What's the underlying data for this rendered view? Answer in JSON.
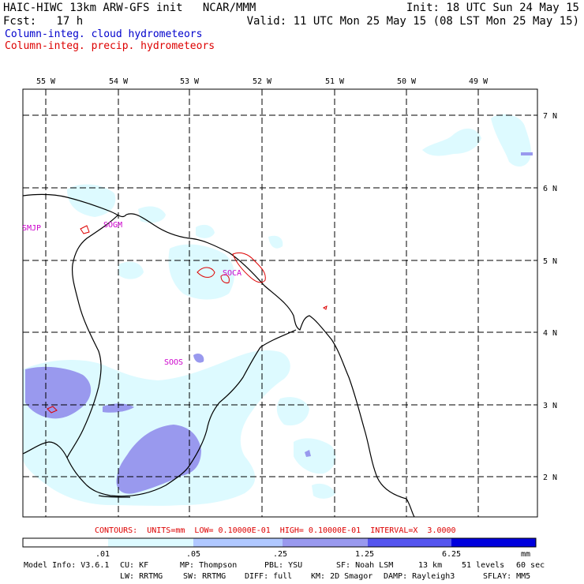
{
  "header": {
    "left_line1": "HAIC-HIWC 13km ARW-GFS init   NCAR/MMM",
    "left_line2": "Fcst:   17 h",
    "right_line1": "Init: 18 UTC Sun 24 May 15",
    "right_line2": "Valid: 11 UTC Mon 25 May 15 (08 LST Mon 25 May 15)",
    "legend_cloud": "Column-integ. cloud hydrometeors",
    "legend_precip": "Column-integ. precip. hydrometeors"
  },
  "colors": {
    "cloud_label": "#0000cc",
    "precip_label": "#dd0000",
    "station": "#cc00cc",
    "shade_1": "#ddfaff",
    "shade_2": "#b0c8ff",
    "shade_3": "#9999ee",
    "shade_4": "#5555ee",
    "shade_5": "#0000dd"
  },
  "map": {
    "lon_labels": [
      "55 W",
      "54 W",
      "53 W",
      "52 W",
      "51 W",
      "50 W",
      "49 W"
    ],
    "lat_labels": [
      "7 N",
      "6 N",
      "5 N",
      "4 N",
      "3 N",
      "2 N"
    ],
    "stations": [
      "SMJP",
      "SOGM",
      "SOCA",
      "SOOS"
    ]
  },
  "contour_info": "CONTOURS:  UNITS=mm  LOW= 0.10000E-01  HIGH= 0.10000E-01  INTERVAL=X  3.0000",
  "colorbar": {
    "ticks": [
      ".01",
      ".05",
      ".25",
      "1.25",
      "6.25"
    ],
    "units": "mm"
  },
  "footer": {
    "line1": [
      "Model Info: V3.6.1",
      "CU: KF",
      "MP: Thompson",
      "PBL: YSU",
      "SF: Noah LSM",
      "13 km",
      "51 levels",
      "60 sec"
    ],
    "line2": [
      "LW: RRTMG",
      "SW: RRTMG",
      "DIFF: full",
      "KM: 2D Smagor",
      "DAMP: Rayleigh3",
      "SFLAY: MM5"
    ]
  }
}
